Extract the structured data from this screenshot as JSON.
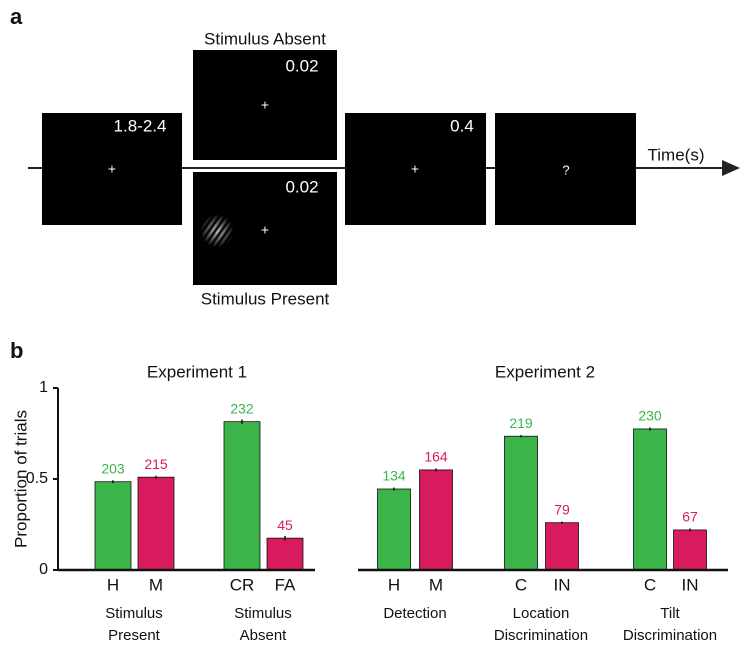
{
  "panel_a": {
    "label": "a",
    "axis_label": "Time(s)",
    "frames": [
      {
        "duration": "1.8-2.4",
        "center": "+"
      },
      {
        "title": "Stimulus Absent",
        "duration": "0.02",
        "center": "+"
      },
      {
        "title": "Stimulus Present",
        "duration": "0.02",
        "center": "+"
      },
      {
        "duration": "0.4",
        "center": "+"
      },
      {
        "center": "?"
      }
    ]
  },
  "panel_b": {
    "label": "b"
  },
  "chart_data": [
    {
      "type": "bar",
      "title": "Experiment 1",
      "ylabel": "Proportion of trials",
      "categories": [
        "H",
        "M",
        "CR",
        "FA"
      ],
      "groups": [
        [
          "Stimulus",
          "Present"
        ],
        [
          "Stimulus",
          "Absent"
        ]
      ],
      "values": [
        0.485,
        0.51,
        0.815,
        0.175
      ],
      "errors": [
        0.008,
        0.008,
        0.012,
        0.012
      ],
      "counts": [
        203,
        215,
        232,
        45
      ],
      "colors": [
        "#3bb54a",
        "#d81b5f",
        "#3bb54a",
        "#d81b5f"
      ],
      "ylim": [
        0,
        1
      ],
      "yticks": [
        0,
        0.5,
        1
      ]
    },
    {
      "type": "bar",
      "title": "Experiment 2",
      "categories": [
        "H",
        "M",
        "C",
        "IN",
        "C",
        "IN"
      ],
      "groups": [
        [
          "Detection"
        ],
        [
          "Location",
          "Discrimination"
        ],
        [
          "Tilt",
          "Discrimination"
        ]
      ],
      "values": [
        0.445,
        0.55,
        0.735,
        0.26,
        0.775,
        0.22
      ],
      "errors": [
        0.008,
        0.008,
        0.006,
        0.006,
        0.008,
        0.008
      ],
      "counts": [
        134,
        164,
        219,
        79,
        230,
        67
      ],
      "colors": [
        "#3bb54a",
        "#d81b5f",
        "#3bb54a",
        "#d81b5f",
        "#3bb54a",
        "#d81b5f"
      ],
      "ylim": [
        0,
        1
      ]
    }
  ]
}
